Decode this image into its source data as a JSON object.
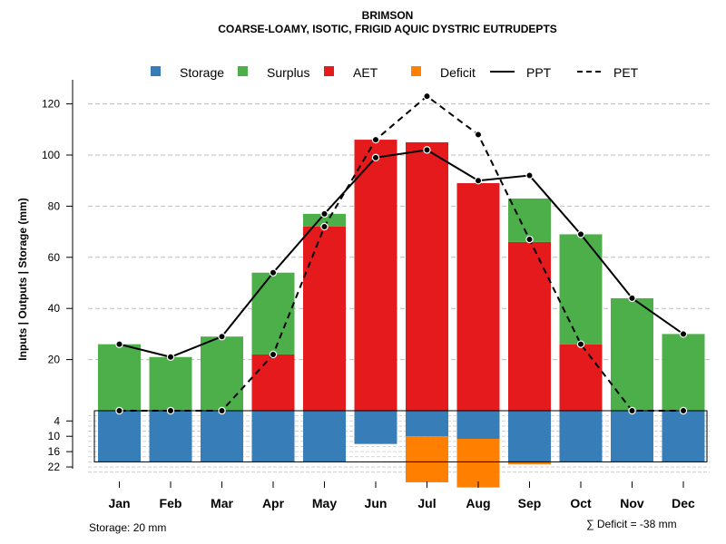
{
  "chart_data": {
    "type": "bar",
    "title": "BRIMSON",
    "subtitle": "COARSE-LOAMY, ISOTIC, FRIGID AQUIC DYSTRIC EUTRUDEPTS",
    "ylabel": "Inputs | Outputs | Storage    (mm)",
    "ylim_upper": [
      0,
      130
    ],
    "y_ticks_upper": [
      20,
      40,
      60,
      80,
      100,
      120
    ],
    "y_ticks_lower": [
      4,
      10,
      16,
      22
    ],
    "ylim_lower": [
      0,
      24
    ],
    "categories": [
      "Jan",
      "Feb",
      "Mar",
      "Apr",
      "May",
      "Jun",
      "Jul",
      "Aug",
      "Sep",
      "Oct",
      "Nov",
      "Dec"
    ],
    "series": [
      {
        "name": "Storage",
        "color": "#377EB8",
        "values": [
          20,
          20,
          20,
          20,
          20,
          13,
          10,
          11,
          20,
          20,
          20,
          20
        ]
      },
      {
        "name": "Surplus",
        "color": "#4DAF4A",
        "values": [
          26,
          21,
          29,
          32,
          5,
          0,
          0,
          0,
          17,
          43,
          44,
          30
        ]
      },
      {
        "name": "AET",
        "color": "#E41A1C",
        "values": [
          0,
          0,
          0,
          22,
          72,
          106,
          105,
          89,
          66,
          26,
          0,
          0
        ]
      },
      {
        "name": "Deficit",
        "color": "#FF7F00",
        "values": [
          0,
          0,
          0,
          0,
          0,
          0,
          18,
          19,
          1,
          0,
          0,
          0
        ]
      },
      {
        "name": "PPT",
        "style": "solid",
        "values": [
          26,
          21,
          29,
          54,
          77,
          99,
          102,
          90,
          92,
          69,
          44,
          30
        ]
      },
      {
        "name": "PET",
        "style": "dashed",
        "values": [
          0,
          0,
          0,
          22,
          72,
          106,
          123,
          108,
          67,
          26,
          0,
          0
        ]
      }
    ],
    "legend": [
      "Storage",
      "Surplus",
      "AET",
      "Deficit",
      "PPT",
      "PET"
    ],
    "legend_position": "top",
    "grid": true
  },
  "footer": {
    "storage_label": "Storage: 20 mm",
    "deficit_label": "∑ Deficit = -38 mm"
  }
}
